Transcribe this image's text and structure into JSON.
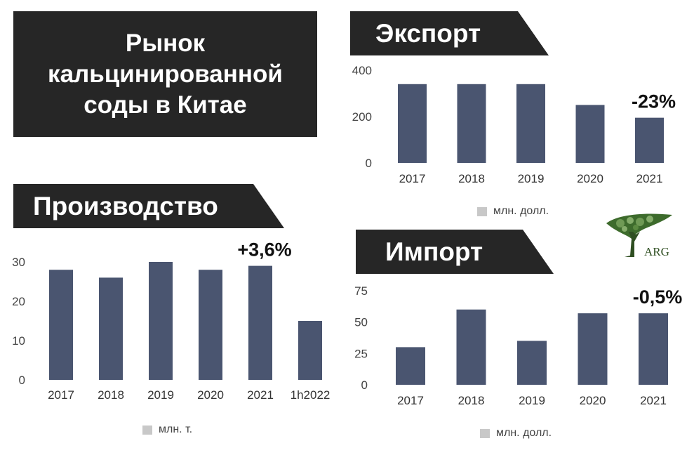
{
  "title": "Рынок кальцинированной соды в Китае",
  "colors": {
    "bar": "#4a5570",
    "banner": "#262626",
    "legend_swatch": "#c8c8c8"
  },
  "logo": {
    "text": "ARG",
    "icon": "tree-icon"
  },
  "chart_data": [
    {
      "id": "export",
      "type": "bar",
      "title": "Экспорт",
      "categories": [
        "2017",
        "2018",
        "2019",
        "2020",
        "2021"
      ],
      "values": [
        340,
        340,
        340,
        250,
        195
      ],
      "y_ticks": [
        "0",
        "200",
        "400"
      ],
      "ylim": [
        0,
        400
      ],
      "annotation": {
        "text": "-23%",
        "category": "2021"
      },
      "legend": "млн. долл.",
      "legend_position": "bottom"
    },
    {
      "id": "production",
      "type": "bar",
      "title": "Производство",
      "categories": [
        "2017",
        "2018",
        "2019",
        "2020",
        "2021",
        "1h2022"
      ],
      "values": [
        28,
        26,
        30,
        28,
        29,
        15
      ],
      "y_ticks": [
        "0",
        "10",
        "20",
        "30"
      ],
      "ylim": [
        0,
        30
      ],
      "annotation": {
        "text": "+3,6%",
        "category": "2021"
      },
      "legend": "млн. т.",
      "legend_position": "bottom"
    },
    {
      "id": "import",
      "type": "bar",
      "title": "Импорт",
      "categories": [
        "2017",
        "2018",
        "2019",
        "2020",
        "2021"
      ],
      "values": [
        30,
        60,
        35,
        57,
        57
      ],
      "y_ticks": [
        "0",
        "25",
        "50",
        "75"
      ],
      "ylim": [
        0,
        75
      ],
      "annotation": {
        "text": "-0,5%",
        "category": "2021"
      },
      "legend": "млн. долл.",
      "legend_position": "bottom"
    }
  ]
}
